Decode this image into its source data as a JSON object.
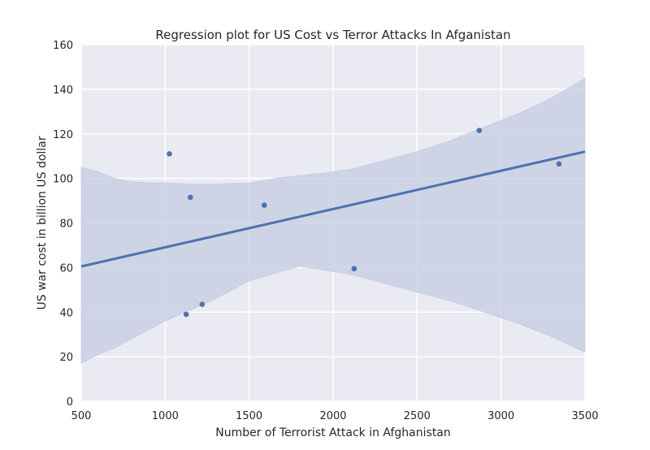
{
  "chart_data": {
    "type": "scatter",
    "title": "Regression plot for US Cost vs Terror Attacks In Afganistan",
    "xlabel": "Number of Terrorist Attack in Afghanistan",
    "ylabel": "US war cost in billion US dollar",
    "xlim": [
      500,
      3500
    ],
    "ylim": [
      0,
      160
    ],
    "xticks": [
      500,
      1000,
      1500,
      2000,
      2500,
      3000,
      3500
    ],
    "yticks": [
      0,
      20,
      40,
      60,
      80,
      100,
      120,
      140,
      160
    ],
    "grid": true,
    "colors": {
      "background": "#eaeaf2",
      "grid": "#ffffff",
      "points": "#4c72b0",
      "line": "#4c72b0",
      "band": "#c4cbe1"
    },
    "points": [
      {
        "x": 1025,
        "y": 111
      },
      {
        "x": 1150,
        "y": 91.5
      },
      {
        "x": 1125,
        "y": 39
      },
      {
        "x": 1220,
        "y": 43.5
      },
      {
        "x": 1590,
        "y": 88
      },
      {
        "x": 2125,
        "y": 59.5
      },
      {
        "x": 2870,
        "y": 121.5
      },
      {
        "x": 3345,
        "y": 106.5
      }
    ],
    "regression_line": [
      {
        "x": 500,
        "y": 60.5
      },
      {
        "x": 3500,
        "y": 112
      }
    ],
    "confidence_band": {
      "upper": [
        {
          "x": 500,
          "y": 105
        },
        {
          "x": 600,
          "y": 103
        },
        {
          "x": 700,
          "y": 100
        },
        {
          "x": 800,
          "y": 98.5
        },
        {
          "x": 900,
          "y": 98
        },
        {
          "x": 1000,
          "y": 98
        },
        {
          "x": 1150,
          "y": 97.5
        },
        {
          "x": 1300,
          "y": 97.5
        },
        {
          "x": 1500,
          "y": 98
        },
        {
          "x": 1700,
          "y": 100.5
        },
        {
          "x": 1900,
          "y": 102
        },
        {
          "x": 2100,
          "y": 104
        },
        {
          "x": 2300,
          "y": 108
        },
        {
          "x": 2500,
          "y": 112
        },
        {
          "x": 2700,
          "y": 117
        },
        {
          "x": 2900,
          "y": 123
        },
        {
          "x": 3100,
          "y": 129
        },
        {
          "x": 3300,
          "y": 136
        },
        {
          "x": 3500,
          "y": 145
        }
      ],
      "lower": [
        {
          "x": 500,
          "y": 17
        },
        {
          "x": 600,
          "y": 21
        },
        {
          "x": 700,
          "y": 24
        },
        {
          "x": 800,
          "y": 28
        },
        {
          "x": 900,
          "y": 32
        },
        {
          "x": 1000,
          "y": 36
        },
        {
          "x": 1150,
          "y": 41
        },
        {
          "x": 1300,
          "y": 46
        },
        {
          "x": 1500,
          "y": 54
        },
        {
          "x": 1700,
          "y": 58.5
        },
        {
          "x": 1800,
          "y": 60.5
        },
        {
          "x": 1900,
          "y": 59.5
        },
        {
          "x": 2100,
          "y": 57
        },
        {
          "x": 2300,
          "y": 53
        },
        {
          "x": 2500,
          "y": 49
        },
        {
          "x": 2700,
          "y": 45
        },
        {
          "x": 2900,
          "y": 40
        },
        {
          "x": 3100,
          "y": 35
        },
        {
          "x": 3300,
          "y": 29
        },
        {
          "x": 3500,
          "y": 22
        }
      ]
    }
  }
}
